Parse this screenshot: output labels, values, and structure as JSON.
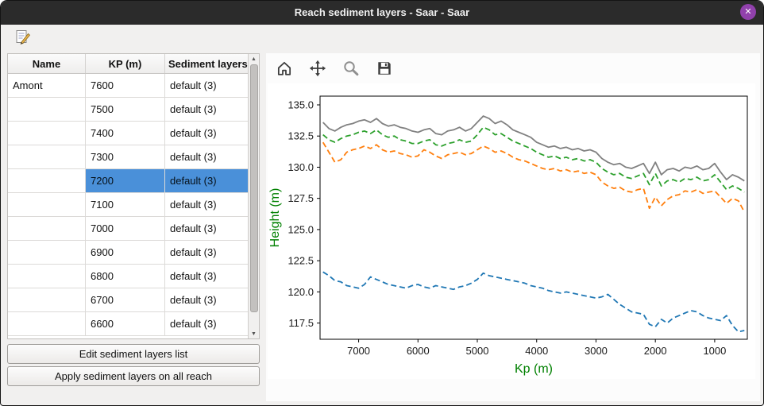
{
  "window": {
    "title": "Reach sediment layers - Saar - Saar"
  },
  "titlebar": {
    "close_glyph": "✕"
  },
  "colors": {
    "selection": "#4a90d9",
    "titlebar_bg": "#2b2b2b",
    "close_button": "#9141ac",
    "axis_label": "#008000"
  },
  "table": {
    "headers": [
      "Name",
      "KP (m)",
      "Sediment layers"
    ],
    "rows": [
      {
        "name": "Amont",
        "kp": "7600",
        "layers": "default (3)",
        "selected": false
      },
      {
        "name": "",
        "kp": "7500",
        "layers": "default (3)",
        "selected": false
      },
      {
        "name": "",
        "kp": "7400",
        "layers": "default (3)",
        "selected": false
      },
      {
        "name": "",
        "kp": "7300",
        "layers": "default (3)",
        "selected": false
      },
      {
        "name": "",
        "kp": "7200",
        "layers": "default (3)",
        "selected": true
      },
      {
        "name": "",
        "kp": "7100",
        "layers": "default (3)",
        "selected": false
      },
      {
        "name": "",
        "kp": "7000",
        "layers": "default (3)",
        "selected": false
      },
      {
        "name": "",
        "kp": "6900",
        "layers": "default (3)",
        "selected": false
      },
      {
        "name": "",
        "kp": "6800",
        "layers": "default (3)",
        "selected": false
      },
      {
        "name": "",
        "kp": "6700",
        "layers": "default (3)",
        "selected": false
      },
      {
        "name": "",
        "kp": "6600",
        "layers": "default (3)",
        "selected": false
      }
    ]
  },
  "actions": {
    "edit_label": "Edit sediment layers list",
    "apply_label": "Apply sediment layers on all reach"
  },
  "main_toolbar": {
    "buttons": [
      {
        "name": "edit-sediment-layers",
        "icon": "edit-note-icon"
      }
    ]
  },
  "plot_toolbar": {
    "buttons": [
      {
        "name": "home",
        "icon": "home-icon"
      },
      {
        "name": "pan",
        "icon": "pan-move-icon"
      },
      {
        "name": "zoom",
        "icon": "zoom-magnifier-icon"
      },
      {
        "name": "save",
        "icon": "save-floppy-icon"
      }
    ]
  },
  "chart_data": {
    "type": "line",
    "title": "",
    "xlabel": "Kp (m)",
    "ylabel": "Height (m)",
    "axis_label_color": "#008000",
    "x_inverted": true,
    "xlim": [
      7650,
      450
    ],
    "ylim": [
      116.2,
      135.7
    ],
    "x_ticks": [
      7000,
      6000,
      5000,
      4000,
      3000,
      2000,
      1000
    ],
    "y_ticks": [
      117.5,
      120.0,
      122.5,
      125.0,
      127.5,
      130.0,
      132.5,
      135.0
    ],
    "grid": false,
    "legend": "none",
    "x": [
      7600,
      7500,
      7400,
      7300,
      7200,
      7100,
      7000,
      6900,
      6800,
      6700,
      6600,
      6500,
      6400,
      6300,
      6200,
      6100,
      6000,
      5900,
      5800,
      5700,
      5600,
      5500,
      5400,
      5300,
      5200,
      5100,
      5000,
      4900,
      4800,
      4700,
      4600,
      4500,
      4400,
      4300,
      4200,
      4100,
      4000,
      3900,
      3800,
      3700,
      3600,
      3500,
      3400,
      3300,
      3200,
      3100,
      3000,
      2900,
      2800,
      2700,
      2600,
      2500,
      2400,
      2300,
      2200,
      2100,
      2000,
      1900,
      1800,
      1700,
      1600,
      1500,
      1400,
      1300,
      1200,
      1100,
      1000,
      900,
      800,
      700,
      600,
      500
    ],
    "series": [
      {
        "name": "solid-gray",
        "color": "#808080",
        "style": "solid",
        "values": [
          133.6,
          133.1,
          132.9,
          133.2,
          133.4,
          133.5,
          133.7,
          133.8,
          133.6,
          133.9,
          133.5,
          133.3,
          133.4,
          133.2,
          133.1,
          132.9,
          132.8,
          133.0,
          133.1,
          132.7,
          132.6,
          132.9,
          133.0,
          133.2,
          132.9,
          133.1,
          133.6,
          134.1,
          133.9,
          133.5,
          133.7,
          133.4,
          133.0,
          132.8,
          132.6,
          132.4,
          132.0,
          131.8,
          131.6,
          131.7,
          131.5,
          131.6,
          131.4,
          131.5,
          131.3,
          131.4,
          131.2,
          130.7,
          130.4,
          130.2,
          130.3,
          130.0,
          129.9,
          130.1,
          130.3,
          129.5,
          130.4,
          129.4,
          129.8,
          129.9,
          129.7,
          130.0,
          129.9,
          130.1,
          129.8,
          129.9,
          130.3,
          129.6,
          129.0,
          129.4,
          129.2,
          128.9
        ]
      },
      {
        "name": "dashed-green",
        "color": "#2ca02c",
        "style": "dashed",
        "values": [
          132.6,
          132.2,
          132.0,
          132.3,
          132.5,
          132.6,
          132.8,
          132.9,
          132.7,
          133.0,
          132.6,
          132.4,
          132.5,
          132.2,
          132.1,
          131.9,
          131.9,
          132.1,
          132.2,
          131.8,
          131.7,
          131.9,
          132.0,
          132.2,
          132.0,
          132.1,
          132.6,
          133.2,
          133.0,
          132.6,
          132.7,
          132.4,
          132.1,
          131.9,
          131.7,
          131.5,
          131.2,
          131.0,
          130.8,
          130.9,
          130.7,
          130.8,
          130.6,
          130.7,
          130.5,
          130.6,
          130.4,
          129.9,
          129.6,
          129.4,
          129.5,
          129.2,
          129.1,
          129.3,
          129.5,
          128.6,
          129.5,
          128.5,
          128.9,
          129.0,
          128.8,
          129.1,
          129.0,
          129.2,
          128.9,
          129.0,
          129.4,
          128.8,
          128.2,
          128.5,
          128.3,
          128.0
        ]
      },
      {
        "name": "dashed-orange",
        "color": "#ff7f0e",
        "style": "dashed",
        "values": [
          132.0,
          131.2,
          130.4,
          130.6,
          131.2,
          131.4,
          131.5,
          131.7,
          131.5,
          131.8,
          131.4,
          131.2,
          131.3,
          131.1,
          131.0,
          130.8,
          130.9,
          131.4,
          131.2,
          130.9,
          130.7,
          131.0,
          131.1,
          131.2,
          131.0,
          131.1,
          131.4,
          131.7,
          131.5,
          131.2,
          131.3,
          131.1,
          130.8,
          130.6,
          130.5,
          130.3,
          130.1,
          129.9,
          129.8,
          129.9,
          129.7,
          129.8,
          129.6,
          129.7,
          129.5,
          129.6,
          129.4,
          128.8,
          128.5,
          128.3,
          128.4,
          128.1,
          128.0,
          128.2,
          128.3,
          126.7,
          127.6,
          126.9,
          127.4,
          127.7,
          127.8,
          128.1,
          128.0,
          128.2,
          127.9,
          128.0,
          128.1,
          127.6,
          127.1,
          127.5,
          127.3,
          126.4
        ]
      },
      {
        "name": "dashed-blue",
        "color": "#1f77b4",
        "style": "dashed",
        "values": [
          121.6,
          121.3,
          120.9,
          120.8,
          120.5,
          120.4,
          120.3,
          120.6,
          121.2,
          121.0,
          120.8,
          120.6,
          120.5,
          120.4,
          120.3,
          120.5,
          120.6,
          120.4,
          120.3,
          120.5,
          120.4,
          120.3,
          120.2,
          120.4,
          120.5,
          120.7,
          121.0,
          121.5,
          121.3,
          121.2,
          121.1,
          121.0,
          120.9,
          120.8,
          120.7,
          120.5,
          120.4,
          120.3,
          120.1,
          120.0,
          119.9,
          120.0,
          119.9,
          119.8,
          119.7,
          119.6,
          119.5,
          119.6,
          119.8,
          119.4,
          119.0,
          118.7,
          118.4,
          118.3,
          118.2,
          117.4,
          117.2,
          117.8,
          117.5,
          117.9,
          118.1,
          118.3,
          118.5,
          118.4,
          118.1,
          117.9,
          117.8,
          117.7,
          118.1,
          117.3,
          116.8,
          116.9
        ]
      }
    ]
  }
}
